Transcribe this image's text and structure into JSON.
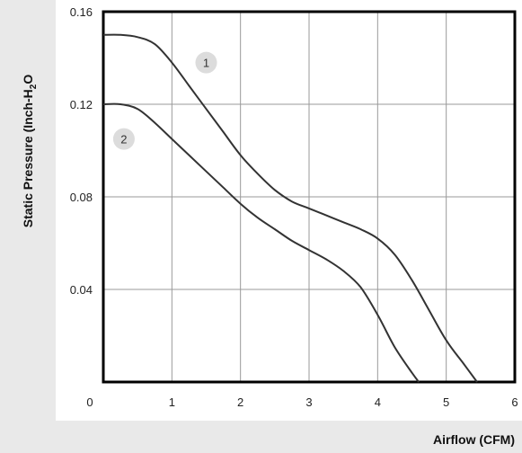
{
  "chart_data": {
    "type": "line",
    "xlabel": "Airflow (CFM)",
    "ylabel": "Static Pressure (Inch-H2O)",
    "ylabel_parts": {
      "before": "Static Pressure (Inch-H",
      "sub": "2",
      "after": "O"
    },
    "xlim": [
      0,
      6
    ],
    "ylim": [
      0,
      0.16
    ],
    "x_ticks": [
      "0",
      "1",
      "2",
      "3",
      "4",
      "5",
      "6"
    ],
    "y_ticks": [
      "0.16",
      "0.12",
      "0.08",
      "0.04"
    ],
    "grid": true,
    "series": [
      {
        "name": "1",
        "x": [
          0,
          0.25,
          0.5,
          0.75,
          1.0,
          1.25,
          1.5,
          1.75,
          2.0,
          2.25,
          2.5,
          2.75,
          3.0,
          3.25,
          3.5,
          3.75,
          4.0,
          4.25,
          4.5,
          4.75,
          5.0,
          5.25,
          5.45
        ],
        "y": [
          0.15,
          0.15,
          0.149,
          0.146,
          0.138,
          0.128,
          0.118,
          0.108,
          0.098,
          0.09,
          0.083,
          0.078,
          0.075,
          0.072,
          0.069,
          0.066,
          0.062,
          0.055,
          0.044,
          0.031,
          0.018,
          0.008,
          0.0
        ]
      },
      {
        "name": "2",
        "x": [
          0,
          0.25,
          0.5,
          0.75,
          1.0,
          1.25,
          1.5,
          1.75,
          2.0,
          2.25,
          2.5,
          2.75,
          3.0,
          3.25,
          3.5,
          3.75,
          4.0,
          4.25,
          4.5,
          4.6
        ],
        "y": [
          0.12,
          0.12,
          0.118,
          0.112,
          0.105,
          0.098,
          0.091,
          0.084,
          0.077,
          0.071,
          0.066,
          0.061,
          0.057,
          0.053,
          0.048,
          0.041,
          0.029,
          0.015,
          0.004,
          0.0
        ]
      }
    ]
  }
}
